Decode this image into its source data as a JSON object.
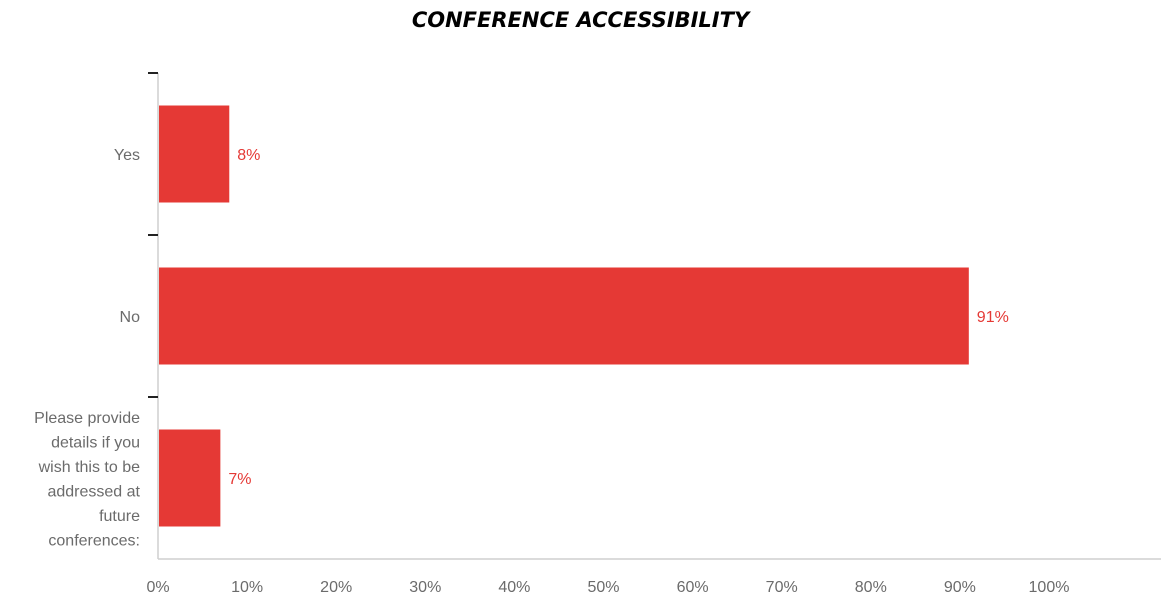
{
  "chart_data": {
    "type": "bar",
    "orientation": "horizontal",
    "title": "CONFERENCE ACCESSIBILITY",
    "categories": [
      "Yes",
      "No",
      "Please provide details if you wish this to be addressed at future conferences:"
    ],
    "category_label_lines": [
      [
        "Yes"
      ],
      [
        "No"
      ],
      [
        "Please provide",
        "details if you",
        "wish this to be",
        "addressed at",
        "future",
        "conferences:"
      ]
    ],
    "values": [
      8,
      91,
      7
    ],
    "data_labels": [
      "8%",
      "91%",
      "7%"
    ],
    "x_ticks": [
      "0%",
      "10%",
      "20%",
      "30%",
      "40%",
      "50%",
      "60%",
      "70%",
      "80%",
      "90%",
      "100%"
    ],
    "xlim": [
      0,
      100
    ],
    "xlabel": "",
    "ylabel": "",
    "grid": false,
    "legend": "none",
    "bar_color": "#e53935",
    "label_color": "#e53935"
  }
}
